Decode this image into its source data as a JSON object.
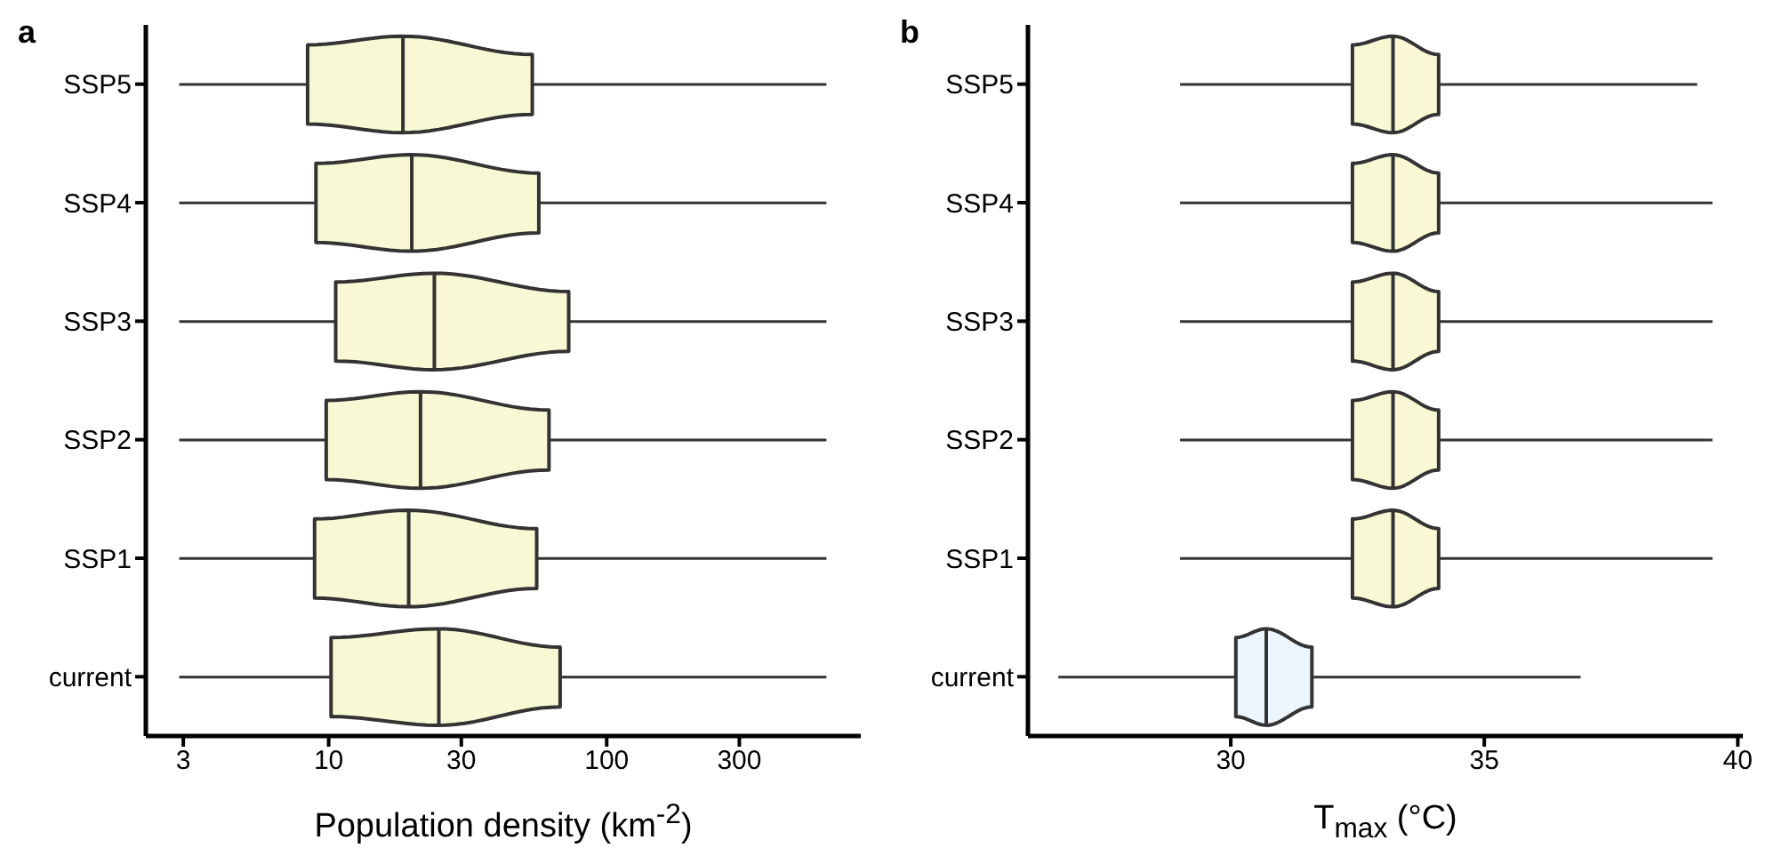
{
  "chart_data": [
    {
      "type": "box",
      "title": "a",
      "xlabel": "Population density (km$^{-2}$)",
      "orientation": "horizontal",
      "log": "x",
      "categories": [
        "SSP5",
        "SSP4",
        "SSP3",
        "SSP2",
        "SSP1",
        "current"
      ],
      "color": "#f8f8d4",
      "xlim": [
        2.2,
        820
      ],
      "xticks": [
        3,
        10,
        30,
        100,
        300
      ],
      "boxes": [
        {
          "low": 2.9,
          "q1": 8.4,
          "median": 18.5,
          "q3": 54,
          "high": 617
        },
        {
          "low": 2.9,
          "q1": 9.0,
          "median": 19.9,
          "q3": 57,
          "high": 617
        },
        {
          "low": 2.9,
          "q1": 10.6,
          "median": 24,
          "q3": 73,
          "high": 617
        },
        {
          "low": 2.9,
          "q1": 9.8,
          "median": 21.4,
          "q3": 62,
          "high": 617
        },
        {
          "low": 2.9,
          "q1": 8.9,
          "median": 19.4,
          "q3": 56,
          "high": 617
        },
        {
          "low": 2.9,
          "q1": 10.2,
          "median": 24.9,
          "q3": 68,
          "high": 617
        }
      ]
    },
    {
      "type": "box",
      "title": "b",
      "xlabel": "T$_{max}$ (°C)",
      "orientation": "horizontal",
      "categories": [
        "SSP5",
        "SSP4",
        "SSP3",
        "SSP2",
        "SSP1",
        "current"
      ],
      "colors": [
        "#f8f8d4",
        "#f8f8d4",
        "#f8f8d4",
        "#f8f8d4",
        "#f8f8d4",
        "#ecf4fc"
      ],
      "xlim": [
        26,
        40.1
      ],
      "xticks": [
        30,
        35,
        40
      ],
      "boxes": [
        {
          "low": 29.0,
          "q1": 32.4,
          "median": 33.2,
          "q3": 34.1,
          "high": 39.2
        },
        {
          "low": 29.0,
          "q1": 32.4,
          "median": 33.2,
          "q3": 34.1,
          "high": 39.5
        },
        {
          "low": 29.0,
          "q1": 32.4,
          "median": 33.2,
          "q3": 34.1,
          "high": 39.5
        },
        {
          "low": 29.0,
          "q1": 32.4,
          "median": 33.2,
          "q3": 34.1,
          "high": 39.5
        },
        {
          "low": 29.0,
          "q1": 32.4,
          "median": 33.2,
          "q3": 34.1,
          "high": 39.5
        },
        {
          "low": 26.6,
          "q1": 30.1,
          "median": 30.7,
          "q3": 31.6,
          "high": 36.9
        }
      ]
    }
  ]
}
